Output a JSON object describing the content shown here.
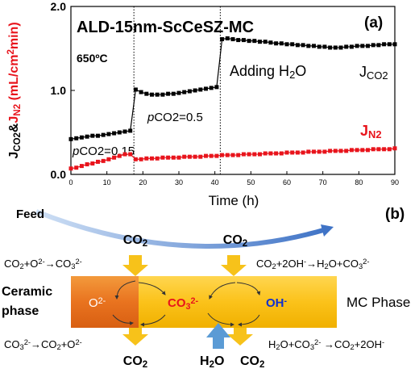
{
  "chart_data": {
    "type": "line",
    "title": "ALD-15nm-ScCeSZ-MC",
    "panel": "(a)",
    "x_label": "Time (h)",
    "y_label": [
      {
        "text": "J"
      },
      {
        "text": "CO2",
        "style": "sub"
      },
      {
        "text": "&"
      },
      {
        "text": "J",
        "color": "#e8141c"
      },
      {
        "text": "N2",
        "style": "sub",
        "color": "#e8141c"
      },
      {
        "text": " (mL/cm",
        "color": "#e8141c"
      },
      {
        "text": "2",
        "style": "sup",
        "color": "#e8141c"
      },
      {
        "text": "min)",
        "color": "#e8141c"
      }
    ],
    "annotations": [
      [
        {
          "text": "650ºC"
        }
      ],
      [
        {
          "text": "p",
          "style": "italic"
        },
        {
          "text": "CO2=0.5"
        }
      ],
      [
        {
          "text": "p",
          "style": "italic"
        },
        {
          "text": "CO2=0.15"
        }
      ],
      [
        {
          "text": "Adding H"
        },
        {
          "text": "2",
          "style": "sub"
        },
        {
          "text": "O"
        }
      ]
    ],
    "x": [
      0,
      1.5,
      3,
      4.5,
      6,
      7.5,
      9,
      10.5,
      12,
      13.5,
      15,
      16.5,
      18,
      19.5,
      21,
      22.5,
      24,
      25.5,
      27,
      28.5,
      30,
      31.5,
      33,
      34.5,
      36,
      37.5,
      39,
      40.5,
      42,
      43.5,
      45,
      46.5,
      48,
      49.5,
      51,
      52.5,
      54,
      55.5,
      57,
      58.5,
      60,
      61.5,
      63,
      64.5,
      66,
      67.5,
      69,
      70.5,
      72,
      73.5,
      75,
      76.5,
      78,
      79.5,
      81,
      82.5,
      84,
      85.5,
      87,
      88.5,
      90
    ],
    "series": [
      {
        "name": [
          {
            "text": "J"
          },
          {
            "text": "CO2",
            "style": "sub"
          }
        ],
        "color": "#000000",
        "values": [
          0.42,
          0.43,
          0.44,
          0.45,
          0.46,
          0.46,
          0.47,
          0.48,
          0.49,
          0.5,
          0.51,
          0.52,
          1.01,
          0.98,
          0.96,
          0.95,
          0.95,
          0.95,
          0.96,
          0.96,
          0.97,
          0.98,
          0.99,
          1.0,
          1.01,
          1.02,
          1.03,
          1.04,
          1.61,
          1.62,
          1.61,
          1.6,
          1.6,
          1.59,
          1.59,
          1.58,
          1.58,
          1.57,
          1.56,
          1.56,
          1.55,
          1.55,
          1.54,
          1.54,
          1.53,
          1.53,
          1.52,
          1.52,
          1.51,
          1.51,
          1.51,
          1.52,
          1.52,
          1.53,
          1.53,
          1.53,
          1.54,
          1.54,
          1.55,
          1.55,
          1.55
        ]
      },
      {
        "name": [
          {
            "text": "J"
          },
          {
            "text": "N2",
            "style": "sub"
          }
        ],
        "color": "#e8141c",
        "values": [
          0.07,
          0.08,
          0.1,
          0.12,
          0.13,
          0.15,
          0.16,
          0.18,
          0.2,
          0.22,
          0.24,
          0.24,
          0.18,
          0.18,
          0.19,
          0.19,
          0.19,
          0.2,
          0.2,
          0.2,
          0.2,
          0.21,
          0.21,
          0.21,
          0.21,
          0.22,
          0.22,
          0.22,
          0.23,
          0.23,
          0.23,
          0.23,
          0.24,
          0.24,
          0.24,
          0.24,
          0.25,
          0.25,
          0.25,
          0.25,
          0.26,
          0.26,
          0.26,
          0.26,
          0.27,
          0.27,
          0.27,
          0.27,
          0.28,
          0.28,
          0.28,
          0.28,
          0.29,
          0.29,
          0.29,
          0.29,
          0.3,
          0.3,
          0.3,
          0.3,
          0.31
        ]
      }
    ],
    "vlines": [
      17.5,
      41.5
    ],
    "xlim": [
      0,
      90
    ],
    "xticks": [
      0,
      10,
      20,
      30,
      40,
      50,
      60,
      70,
      80,
      90
    ],
    "ylim": [
      0,
      2
    ],
    "yticks": [
      {
        "value": 0,
        "label": "0.0"
      },
      {
        "value": 1,
        "label": "1.0"
      },
      {
        "value": 2,
        "label": "2.0"
      }
    ]
  },
  "diagram": {
    "panel": "(b)",
    "feed": [
      {
        "text": "Feed"
      }
    ],
    "co2_top_left": [
      {
        "text": "CO"
      },
      {
        "text": "2",
        "style": "sub"
      }
    ],
    "co2_top_right": [
      {
        "text": "CO"
      },
      {
        "text": "2",
        "style": "sub"
      }
    ],
    "reaction_top_left": [
      {
        "text": "CO"
      },
      {
        "text": "2",
        "style": "sub"
      },
      {
        "text": "+O"
      },
      {
        "text": "2-",
        "style": "sup"
      },
      {
        "text": "→CO"
      },
      {
        "text": "3",
        "style": "sub"
      },
      {
        "text": "2-",
        "style": "sup"
      }
    ],
    "reaction_top_right": [
      {
        "text": "CO"
      },
      {
        "text": "2",
        "style": "sub"
      },
      {
        "text": "+2OH"
      },
      {
        "text": "-",
        "style": "sup"
      },
      {
        "text": "→H"
      },
      {
        "text": "2",
        "style": "sub"
      },
      {
        "text": "O+CO"
      },
      {
        "text": "3",
        "style": "sub"
      },
      {
        "text": "2-",
        "style": "sup"
      }
    ],
    "ceramic_line1": [
      {
        "text": "Ceramic"
      }
    ],
    "ceramic_line2": [
      {
        "text": "phase"
      }
    ],
    "oxide_ion": [
      {
        "text": "O"
      },
      {
        "text": "2-",
        "style": "sup"
      }
    ],
    "carbonate_ion": [
      {
        "text": "CO"
      },
      {
        "text": "3",
        "style": "sub"
      },
      {
        "text": "2-",
        "style": "sup"
      }
    ],
    "hydroxide_ion": [
      {
        "text": "OH"
      },
      {
        "text": "-",
        "style": "sup"
      }
    ],
    "mc_phase": [
      {
        "text": "MC Phase"
      }
    ],
    "reaction_bottom_left": [
      {
        "text": "CO"
      },
      {
        "text": "3",
        "style": "sub"
      },
      {
        "text": "2-",
        "style": "sup"
      },
      {
        "text": "→CO"
      },
      {
        "text": "2",
        "style": "sub"
      },
      {
        "text": "+O"
      },
      {
        "text": "2-",
        "style": "sup"
      }
    ],
    "reaction_bottom_right": [
      {
        "text": "H"
      },
      {
        "text": "2",
        "style": "sub"
      },
      {
        "text": "O+CO"
      },
      {
        "text": "3",
        "style": "sub"
      },
      {
        "text": "2-",
        "style": "sup"
      },
      {
        "text": " →CO"
      },
      {
        "text": "2",
        "style": "sub"
      },
      {
        "text": "+2OH"
      },
      {
        "text": "-",
        "style": "sup"
      }
    ],
    "co2_bottom_left": [
      {
        "text": "CO"
      },
      {
        "text": "2",
        "style": "sub"
      }
    ],
    "h2o_bottom": [
      {
        "text": "H"
      },
      {
        "text": "2",
        "style": "sub"
      },
      {
        "text": "O"
      }
    ],
    "co2_bottom_right": [
      {
        "text": "CO"
      },
      {
        "text": "2",
        "style": "sub"
      }
    ]
  }
}
